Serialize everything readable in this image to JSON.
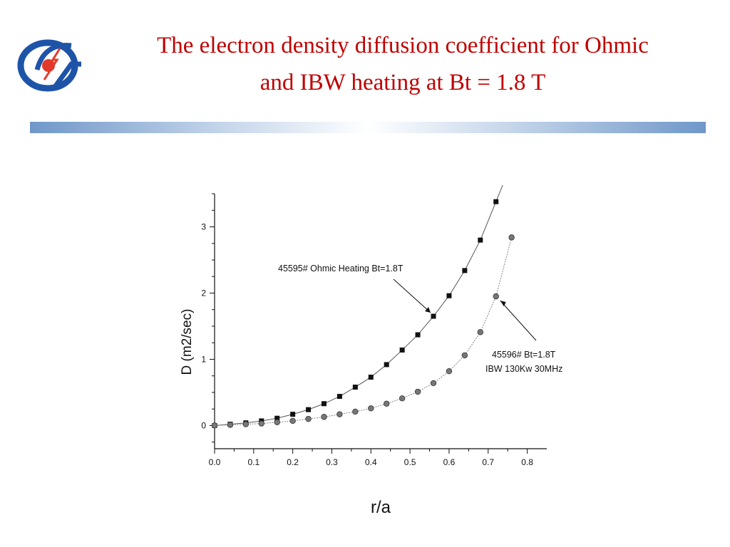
{
  "slide": {
    "title_line1": "The electron density diffusion coefficient for Ohmic",
    "title_line2": "and IBW heating at Bt = 1.8 T",
    "logo_icon": "institute-logo-icon",
    "divider_colors": [
      "#6f97c8",
      "#ffffff"
    ]
  },
  "chart_data": {
    "type": "scatter",
    "title": "",
    "xlabel": "r/a",
    "ylabel": "D (m2/sec)",
    "xlim": [
      0.0,
      0.85
    ],
    "ylim": [
      -0.35,
      3.5
    ],
    "xticks": [
      0.0,
      0.1,
      0.2,
      0.3,
      0.4,
      0.5,
      0.6,
      0.7,
      0.8
    ],
    "xtick_labels": [
      "0.0",
      "0.1",
      "0.2",
      "0.3",
      "0.4",
      "0.5",
      "0.6",
      "0.7",
      "0.8"
    ],
    "yticks": [
      0,
      1,
      2,
      3
    ],
    "ytick_labels": [
      "0",
      "1",
      "2",
      "3"
    ],
    "grid": false,
    "series": [
      {
        "marker": "square",
        "color": "#111111",
        "x": [
          0.0,
          0.04,
          0.08,
          0.12,
          0.16,
          0.2,
          0.24,
          0.28,
          0.32,
          0.36,
          0.4,
          0.44,
          0.48,
          0.52,
          0.56,
          0.6,
          0.64,
          0.68,
          0.72
        ],
        "y": [
          0.0,
          0.02,
          0.04,
          0.07,
          0.11,
          0.17,
          0.24,
          0.33,
          0.44,
          0.58,
          0.73,
          0.92,
          1.14,
          1.37,
          1.65,
          1.96,
          2.34,
          2.8,
          3.38
        ]
      },
      {
        "marker": "circle",
        "color": "#777777",
        "x": [
          0.0,
          0.04,
          0.08,
          0.12,
          0.16,
          0.2,
          0.24,
          0.28,
          0.32,
          0.36,
          0.4,
          0.44,
          0.48,
          0.52,
          0.56,
          0.6,
          0.64,
          0.68,
          0.72,
          0.76
        ],
        "y": [
          0.0,
          0.01,
          0.02,
          0.03,
          0.05,
          0.07,
          0.1,
          0.13,
          0.17,
          0.21,
          0.26,
          0.33,
          0.41,
          0.51,
          0.64,
          0.82,
          1.06,
          1.41,
          1.95,
          2.84
        ]
      }
    ],
    "annotations": [
      {
        "text": "45595# Ohmic Heating Bt=1.8T",
        "series": 0
      },
      {
        "text_line1": "45596#  Bt=1.8T",
        "text_line2": "IBW 130Kw 30MHz",
        "series": 1
      }
    ]
  }
}
